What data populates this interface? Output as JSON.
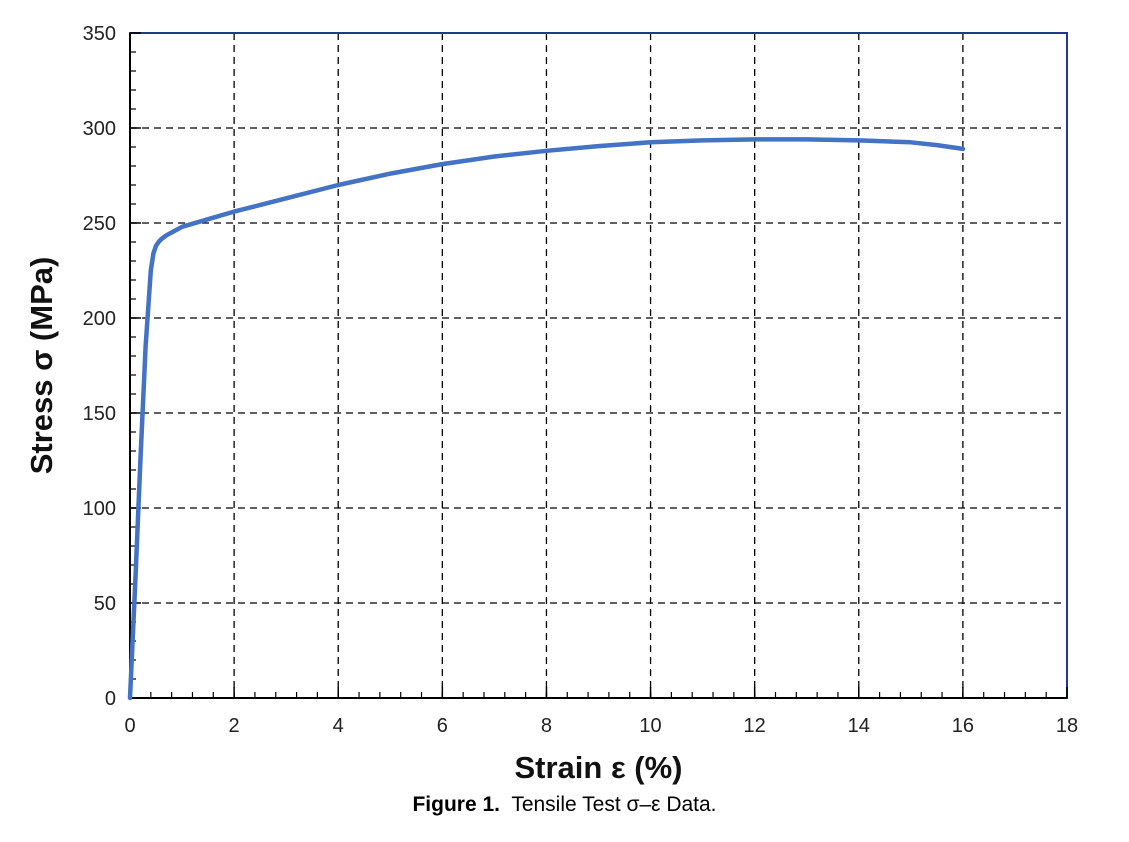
{
  "chart_data": {
    "type": "line",
    "xlabel": "Strain ε (%)",
    "ylabel": "Stress σ (MPa)",
    "xlim": [
      0,
      18
    ],
    "ylim": [
      0,
      350
    ],
    "x_ticks": [
      "0",
      "2",
      "4",
      "6",
      "8",
      "10",
      "12",
      "14",
      "16",
      "18"
    ],
    "y_ticks": [
      "0",
      "50",
      "100",
      "150",
      "200",
      "250",
      "300",
      "350"
    ],
    "grid": true,
    "line_color": "#4472c4",
    "series": [
      {
        "x": [
          0,
          0.1,
          0.2,
          0.3,
          0.4,
          0.45,
          0.5,
          0.55,
          0.6,
          0.7,
          0.8,
          1.0,
          1.5,
          2.0,
          3.0,
          4.0,
          5.0,
          6.0,
          7.0,
          8.0,
          9.0,
          10.0,
          11.0,
          12.0,
          13.0,
          14.0,
          15.0,
          15.5,
          16.0
        ],
        "y": [
          0,
          60,
          125,
          185,
          225,
          234,
          238,
          240,
          241.5,
          243.5,
          245,
          248,
          252,
          256,
          263,
          270,
          276,
          281,
          285,
          288,
          290.5,
          292.5,
          293.5,
          294,
          294,
          293.5,
          292.5,
          291,
          289
        ]
      }
    ]
  },
  "caption": {
    "label": "Figure 1.",
    "text": "Tensile Test σ–ε Data."
  }
}
